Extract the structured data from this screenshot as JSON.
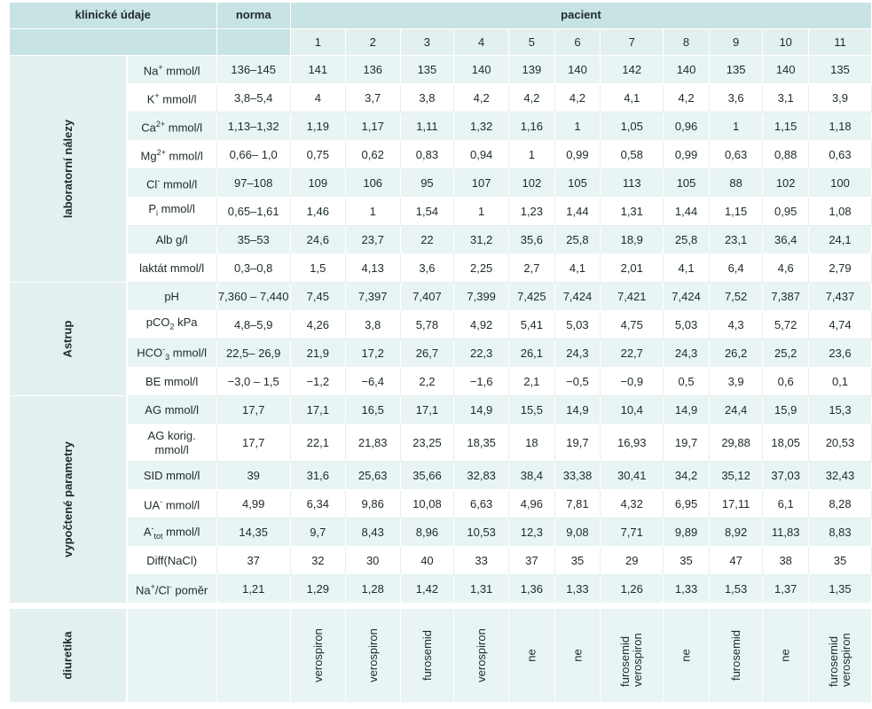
{
  "header": {
    "clinical": "klinické údaje",
    "norm": "norma",
    "patient": "pacient",
    "patient_numbers": [
      "1",
      "2",
      "3",
      "4",
      "5",
      "6",
      "7",
      "8",
      "9",
      "10",
      "11"
    ]
  },
  "groups": {
    "lab": "laboratorní nálezy",
    "astrup": "Astrup",
    "calc": "vypočtené parametry",
    "diur": "diuretika"
  },
  "rows": [
    {
      "label_pre": "Na",
      "label_sup": "+",
      "label_sub": "",
      "label_post": " mmol/l",
      "norm": "136–145",
      "values": [
        "141",
        "136",
        "135",
        "140",
        "139",
        "140",
        "142",
        "140",
        "135",
        "140",
        "135"
      ]
    },
    {
      "label_pre": "K",
      "label_sup": "+",
      "label_sub": "",
      "label_post": " mmol/l",
      "norm": "3,8–5,4",
      "values": [
        "4",
        "3,7",
        "3,8",
        "4,2",
        "4,2",
        "4,2",
        "4,1",
        "4,2",
        "3,6",
        "3,1",
        "3,9"
      ]
    },
    {
      "label_pre": "Ca",
      "label_sup": "2+",
      "label_sub": "",
      "label_post": " mmol/l",
      "norm": "1,13–1,32",
      "values": [
        "1,19",
        "1,17",
        "1,11",
        "1,32",
        "1,16",
        "1",
        "1,05",
        "0,96",
        "1",
        "1,15",
        "1,18"
      ]
    },
    {
      "label_pre": "Mg",
      "label_sup": "2+",
      "label_sub": "",
      "label_post": " mmol/l",
      "norm": "0,66– 1,0",
      "values": [
        "0,75",
        "0,62",
        "0,83",
        "0,94",
        "1",
        "0,99",
        "0,58",
        "0,99",
        "0,63",
        "0,88",
        "0,63"
      ]
    },
    {
      "label_pre": "Cl",
      "label_sup": "-",
      "label_sub": "",
      "label_post": " mmol/l",
      "norm": "97–108",
      "values": [
        "109",
        "106",
        "95",
        "107",
        "102",
        "105",
        "113",
        "105",
        "88",
        "102",
        "100"
      ]
    },
    {
      "label_pre": "P",
      "label_sup": "",
      "label_sub": "i",
      "label_post": " mmol/l",
      "norm": "0,65–1,61",
      "values": [
        "1,46",
        "1",
        "1,54",
        "1",
        "1,23",
        "1,44",
        "1,31",
        "1,44",
        "1,15",
        "0,95",
        "1,08"
      ]
    },
    {
      "label_pre": "Alb g/l",
      "label_sup": "",
      "label_sub": "",
      "label_post": "",
      "norm": "35–53",
      "values": [
        "24,6",
        "23,7",
        "22",
        "31,2",
        "35,6",
        "25,8",
        "18,9",
        "25,8",
        "23,1",
        "36,4",
        "24,1"
      ]
    },
    {
      "label_pre": "laktát mmol/l",
      "label_sup": "",
      "label_sub": "",
      "label_post": "",
      "norm": "0,3–0,8",
      "values": [
        "1,5",
        "4,13",
        "3,6",
        "2,25",
        "2,7",
        "4,1",
        "2,01",
        "4,1",
        "6,4",
        "4,6",
        "2,79"
      ]
    },
    {
      "label_pre": "pH",
      "label_sup": "",
      "label_sub": "",
      "label_post": "",
      "norm": "7,360 – 7,440",
      "values": [
        "7,45",
        "7,397",
        "7,407",
        "7,399",
        "7,425",
        "7,424",
        "7,421",
        "7,424",
        "7,52",
        "7,387",
        "7,437"
      ]
    },
    {
      "label_pre": "pCO",
      "label_sup": "",
      "label_sub": "2",
      "label_post": " kPa",
      "norm": "4,8–5,9",
      "values": [
        "4,26",
        "3,8",
        "5,78",
        "4,92",
        "5,41",
        "5,03",
        "4,75",
        "5,03",
        "4,3",
        "5,72",
        "4,74"
      ]
    },
    {
      "label_pre": "HCO",
      "label_sup": "-",
      "label_sub": "3",
      "label_post": " mmol/l",
      "norm": "22,5– 26,9",
      "values": [
        "21,9",
        "17,2",
        "26,7",
        "22,3",
        "26,1",
        "24,3",
        "22,7",
        "24,3",
        "26,2",
        "25,2",
        "23,6"
      ]
    },
    {
      "label_pre": "BE mmol/l",
      "label_sup": "",
      "label_sub": "",
      "label_post": "",
      "norm": "−3,0 – 1,5",
      "values": [
        "−1,2",
        "−6,4",
        "2,2",
        "−1,6",
        "2,1",
        "−0,5",
        "−0,9",
        "0,5",
        "3,9",
        "0,6",
        "0,1"
      ]
    },
    {
      "label_pre": "AG mmol/l",
      "label_sup": "",
      "label_sub": "",
      "label_post": "",
      "norm": "17,7",
      "values": [
        "17,1",
        "16,5",
        "17,1",
        "14,9",
        "15,5",
        "14,9",
        "10,4",
        "14,9",
        "24,4",
        "15,9",
        "15,3"
      ]
    },
    {
      "label_pre": "AG korig.",
      "label_sup": "",
      "label_sub": "",
      "label_post": "mmol/l",
      "label_break": true,
      "norm": "17,7",
      "values": [
        "22,1",
        "21,83",
        "23,25",
        "18,35",
        "18",
        "19,7",
        "16,93",
        "19,7",
        "29,88",
        "18,05",
        "20,53"
      ]
    },
    {
      "label_pre": "SID mmol/l",
      "label_sup": "",
      "label_sub": "",
      "label_post": "",
      "norm": "39",
      "values": [
        "31,6",
        "25,63",
        "35,66",
        "32,83",
        "38,4",
        "33,38",
        "30,41",
        "34,2",
        "35,12",
        "37,03",
        "32,43"
      ]
    },
    {
      "label_pre": "UA",
      "label_sup": "-",
      "label_sub": "",
      "label_post": " mmol/l",
      "norm": "4,99",
      "values": [
        "6,34",
        "9,86",
        "10,08",
        "6,63",
        "4,96",
        "7,81",
        "4,32",
        "6,95",
        "17,11",
        "6,1",
        "8,28"
      ]
    },
    {
      "label_pre": "A",
      "label_sup": "-",
      "label_sub": "tot",
      "label_post": " mmol/l",
      "norm": "14,35",
      "values": [
        "9,7",
        "8,43",
        "8,96",
        "10,53",
        "12,3",
        "9,08",
        "7,71",
        "9,89",
        "8,92",
        "11,83",
        "8,83"
      ]
    },
    {
      "label_pre": "Diff(NaCl)",
      "label_sup": "",
      "label_sub": "",
      "label_post": "",
      "norm": "37",
      "values": [
        "32",
        "30",
        "40",
        "33",
        "37",
        "35",
        "29",
        "35",
        "47",
        "38",
        "35"
      ]
    },
    {
      "label_pre": "Na",
      "label_sup": "+",
      "label_sub": "",
      "label_post": "/Cl",
      "label_sup2": "-",
      "label_post2": " poměr",
      "norm": "1,21",
      "values": [
        "1,29",
        "1,28",
        "1,42",
        "1,31",
        "1,36",
        "1,33",
        "1,26",
        "1,33",
        "1,53",
        "1,37",
        "1,35"
      ]
    }
  ],
  "diuretics": [
    "verospiron",
    "verospiron",
    "furosemid",
    "verospiron",
    "ne",
    "ne",
    "furosemid verospiron",
    "ne",
    "furosemid",
    "ne",
    "furosemid verospiron"
  ]
}
